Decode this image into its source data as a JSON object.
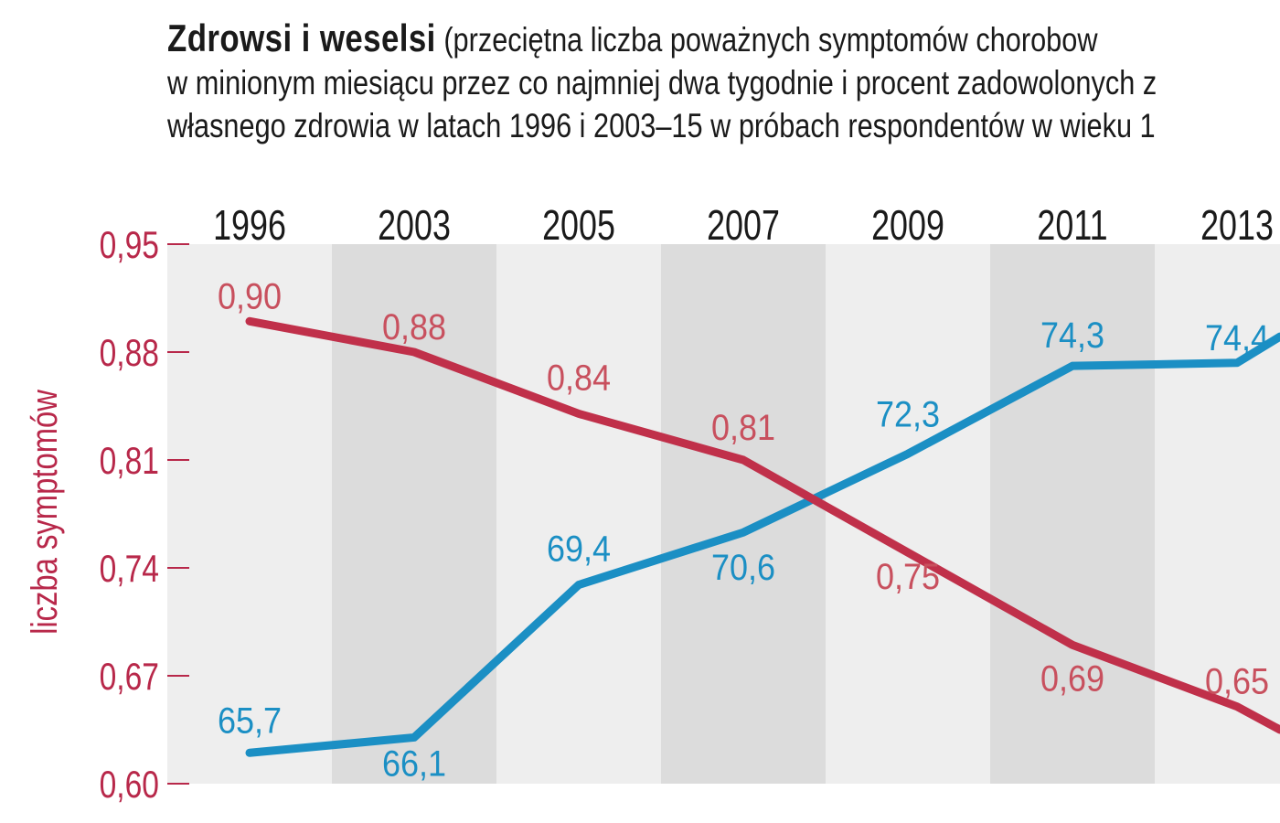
{
  "header": {
    "title_bold": "Zdrowsi i weselsi",
    "title_rest_line1": "(przeciętna liczba poważnych symptomów chorobow",
    "title_line2": "w minionym miesiącu przez co najmniej dwa tygodnie i procent zadowolonych z",
    "title_line3": "własnego zdrowia w latach 1996 i 2003–15 w próbach respondentów w wieku 1"
  },
  "chart_data": {
    "type": "line",
    "categories": [
      "1996",
      "2003",
      "2005",
      "2007",
      "2009",
      "2011",
      "2013"
    ],
    "ylabel": "liczba symptomów",
    "ylim": [
      0.6,
      0.95
    ],
    "yticks": [
      "0,95",
      "0,88",
      "0,81",
      "0,74",
      "0,67",
      "0,60"
    ],
    "ytick_values": [
      0.95,
      0.88,
      0.81,
      0.74,
      0.67,
      0.6
    ],
    "series": [
      {
        "key": "symptoms",
        "color": "#c0304a",
        "label_color": "#c8505e",
        "values": [
          0.9,
          0.88,
          0.84,
          0.81,
          0.75,
          0.69,
          0.65
        ],
        "labels": [
          "0,90",
          "0,88",
          "0,84",
          "0,81",
          "0,75",
          "0,69",
          "0,65"
        ],
        "continues_to_edge": 0.635
      },
      {
        "key": "satisfaction",
        "color": "#1b8fc4",
        "label_color": "#1b8fc4",
        "values": [
          65.7,
          66.1,
          69.4,
          70.6,
          72.3,
          74.3,
          74.4
        ],
        "labels": [
          "65,7",
          "66,1",
          "69,4",
          "70,6",
          "72,3",
          "74,3",
          "74,4"
        ],
        "continues_to_edge": 75.0
      }
    ],
    "grid": false,
    "colors": {
      "band_light": "#eeeeee",
      "band_dark": "#dcdcdc",
      "axis_text": "#b8284a",
      "category_text": "#1a1a1a"
    }
  }
}
